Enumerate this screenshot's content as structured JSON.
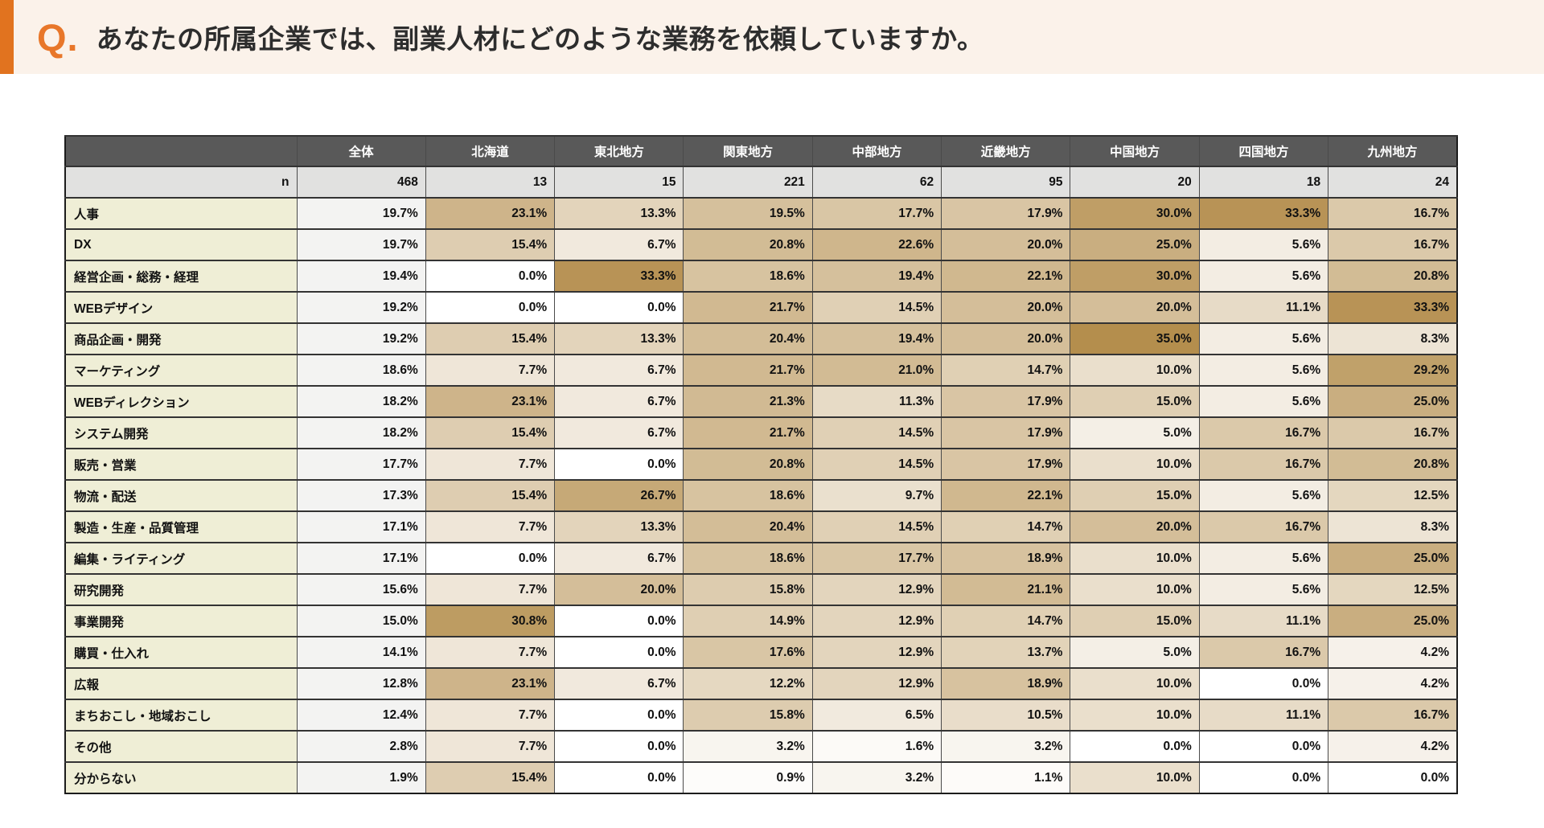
{
  "question": {
    "q_mark": "Q.",
    "text": "あなたの所属企業では、副業人材にどのような業務を依頼していますか。"
  },
  "colors": {
    "accent_orange": "#e1731f",
    "q_mark_orange": "#e8772a",
    "question_band_bg": "#fbf2ea",
    "header_bg": "#595959",
    "header_text": "#ffffff",
    "n_row_bg": "#e1e1e0",
    "row_label_bg": "#efeed6",
    "total_col_bg": "#f3f3f2",
    "heat_min_color": "#ffffff",
    "heat_max_color": "#b48e4d",
    "border": "#333333"
  },
  "chart_data": {
    "type": "heatmap",
    "title": "あなたの所属企業では、副業人材にどのような業務を依頼していますか。",
    "columns": [
      "全体",
      "北海道",
      "東北地方",
      "関東地方",
      "中部地方",
      "近畿地方",
      "中国地方",
      "四国地方",
      "九州地方"
    ],
    "n_label": "n",
    "n_values": [
      468,
      13,
      15,
      221,
      62,
      95,
      20,
      18,
      24
    ],
    "value_suffix": "%",
    "heatmap": {
      "applies_to": "region_columns_only",
      "min": 0,
      "max": 35,
      "min_color": "#ffffff",
      "max_color": "#b48e4d"
    },
    "rows": [
      {
        "label": "人事",
        "values": [
          19.7,
          23.1,
          13.3,
          19.5,
          17.7,
          17.9,
          30.0,
          33.3,
          16.7
        ]
      },
      {
        "label": "DX",
        "values": [
          19.7,
          15.4,
          6.7,
          20.8,
          22.6,
          20.0,
          25.0,
          5.6,
          16.7
        ]
      },
      {
        "label": "経営企画・総務・経理",
        "values": [
          19.4,
          0.0,
          33.3,
          18.6,
          19.4,
          22.1,
          30.0,
          5.6,
          20.8
        ]
      },
      {
        "label": "WEBデザイン",
        "values": [
          19.2,
          0.0,
          0.0,
          21.7,
          14.5,
          20.0,
          20.0,
          11.1,
          33.3
        ]
      },
      {
        "label": "商品企画・開発",
        "values": [
          19.2,
          15.4,
          13.3,
          20.4,
          19.4,
          20.0,
          35.0,
          5.6,
          8.3
        ]
      },
      {
        "label": "マーケティング",
        "values": [
          18.6,
          7.7,
          6.7,
          21.7,
          21.0,
          14.7,
          10.0,
          5.6,
          29.2
        ]
      },
      {
        "label": "WEBディレクション",
        "values": [
          18.2,
          23.1,
          6.7,
          21.3,
          11.3,
          17.9,
          15.0,
          5.6,
          25.0
        ]
      },
      {
        "label": "システム開発",
        "values": [
          18.2,
          15.4,
          6.7,
          21.7,
          14.5,
          17.9,
          5.0,
          16.7,
          16.7
        ]
      },
      {
        "label": "販売・営業",
        "values": [
          17.7,
          7.7,
          0.0,
          20.8,
          14.5,
          17.9,
          10.0,
          16.7,
          20.8
        ]
      },
      {
        "label": "物流・配送",
        "values": [
          17.3,
          15.4,
          26.7,
          18.6,
          9.7,
          22.1,
          15.0,
          5.6,
          12.5
        ]
      },
      {
        "label": "製造・生産・品質管理",
        "values": [
          17.1,
          7.7,
          13.3,
          20.4,
          14.5,
          14.7,
          20.0,
          16.7,
          8.3
        ]
      },
      {
        "label": "編集・ライティング",
        "values": [
          17.1,
          0.0,
          6.7,
          18.6,
          17.7,
          18.9,
          10.0,
          5.6,
          25.0
        ]
      },
      {
        "label": "研究開発",
        "values": [
          15.6,
          7.7,
          20.0,
          15.8,
          12.9,
          21.1,
          10.0,
          5.6,
          12.5
        ]
      },
      {
        "label": "事業開発",
        "values": [
          15.0,
          30.8,
          0.0,
          14.9,
          12.9,
          14.7,
          15.0,
          11.1,
          25.0
        ]
      },
      {
        "label": "購買・仕入れ",
        "values": [
          14.1,
          7.7,
          0.0,
          17.6,
          12.9,
          13.7,
          5.0,
          16.7,
          4.2
        ]
      },
      {
        "label": "広報",
        "values": [
          12.8,
          23.1,
          6.7,
          12.2,
          12.9,
          18.9,
          10.0,
          0.0,
          4.2
        ]
      },
      {
        "label": "まちおこし・地域おこし",
        "values": [
          12.4,
          7.7,
          0.0,
          15.8,
          6.5,
          10.5,
          10.0,
          11.1,
          16.7
        ]
      },
      {
        "label": "その他",
        "values": [
          2.8,
          7.7,
          0.0,
          3.2,
          1.6,
          3.2,
          0.0,
          0.0,
          4.2
        ]
      },
      {
        "label": "分からない",
        "values": [
          1.9,
          15.4,
          0.0,
          0.9,
          3.2,
          1.1,
          10.0,
          0.0,
          0.0
        ]
      }
    ]
  }
}
